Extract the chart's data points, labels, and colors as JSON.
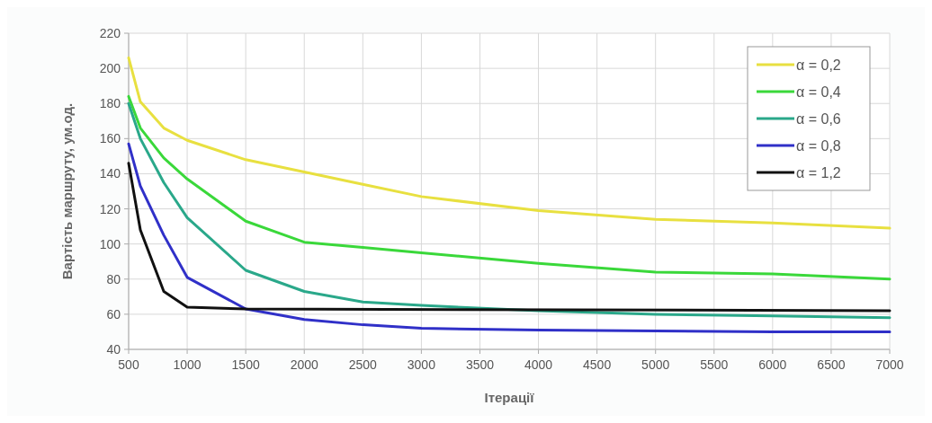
{
  "chart_data": {
    "type": "line",
    "xlabel": "Ітерації",
    "ylabel": "Вартість маршруту, ум.од.",
    "xlim": [
      500,
      7000
    ],
    "xticks": [
      500,
      1000,
      1500,
      2000,
      2500,
      3000,
      3500,
      4000,
      4500,
      5000,
      5500,
      6000,
      6500,
      7000
    ],
    "ylim": [
      40,
      220
    ],
    "yticks": [
      40,
      60,
      80,
      100,
      120,
      140,
      160,
      180,
      200,
      220
    ],
    "grid": true,
    "legend": "top right",
    "marker": "none",
    "line_style": "solid",
    "series": [
      {
        "name": "α = 0,2",
        "color": "#e8e040",
        "x": [
          500,
          600,
          800,
          1000,
          1500,
          2000,
          2500,
          3000,
          4000,
          5000,
          6000,
          7000
        ],
        "values": [
          206,
          181,
          166,
          159,
          148,
          141,
          134,
          127,
          119,
          114,
          112,
          109
        ]
      },
      {
        "name": "α = 0,4",
        "color": "#3ad83a",
        "x": [
          500,
          600,
          800,
          1000,
          1500,
          2000,
          2500,
          3000,
          4000,
          5000,
          6000,
          7000
        ],
        "values": [
          184,
          166,
          149,
          137,
          113,
          101,
          98,
          95,
          89,
          84,
          83,
          80
        ]
      },
      {
        "name": "α = 0,6",
        "color": "#2aa88a",
        "x": [
          500,
          600,
          800,
          1000,
          1500,
          2000,
          2500,
          3000,
          4000,
          5000,
          6000,
          7000
        ],
        "values": [
          180,
          160,
          135,
          115,
          85,
          73,
          67,
          65,
          62,
          60,
          59,
          58
        ]
      },
      {
        "name": "α = 0,8",
        "color": "#3030c8",
        "x": [
          500,
          600,
          800,
          1000,
          1500,
          2000,
          2500,
          3000,
          4000,
          5000,
          6000,
          7000
        ],
        "values": [
          157,
          133,
          105,
          81,
          63,
          57,
          54,
          52,
          51,
          50.5,
          50,
          50
        ]
      },
      {
        "name": "α = 1,2",
        "color": "#111111",
        "x": [
          500,
          600,
          800,
          1000,
          1500,
          7000
        ],
        "values": [
          146,
          108,
          73,
          64,
          63,
          62
        ]
      }
    ]
  }
}
